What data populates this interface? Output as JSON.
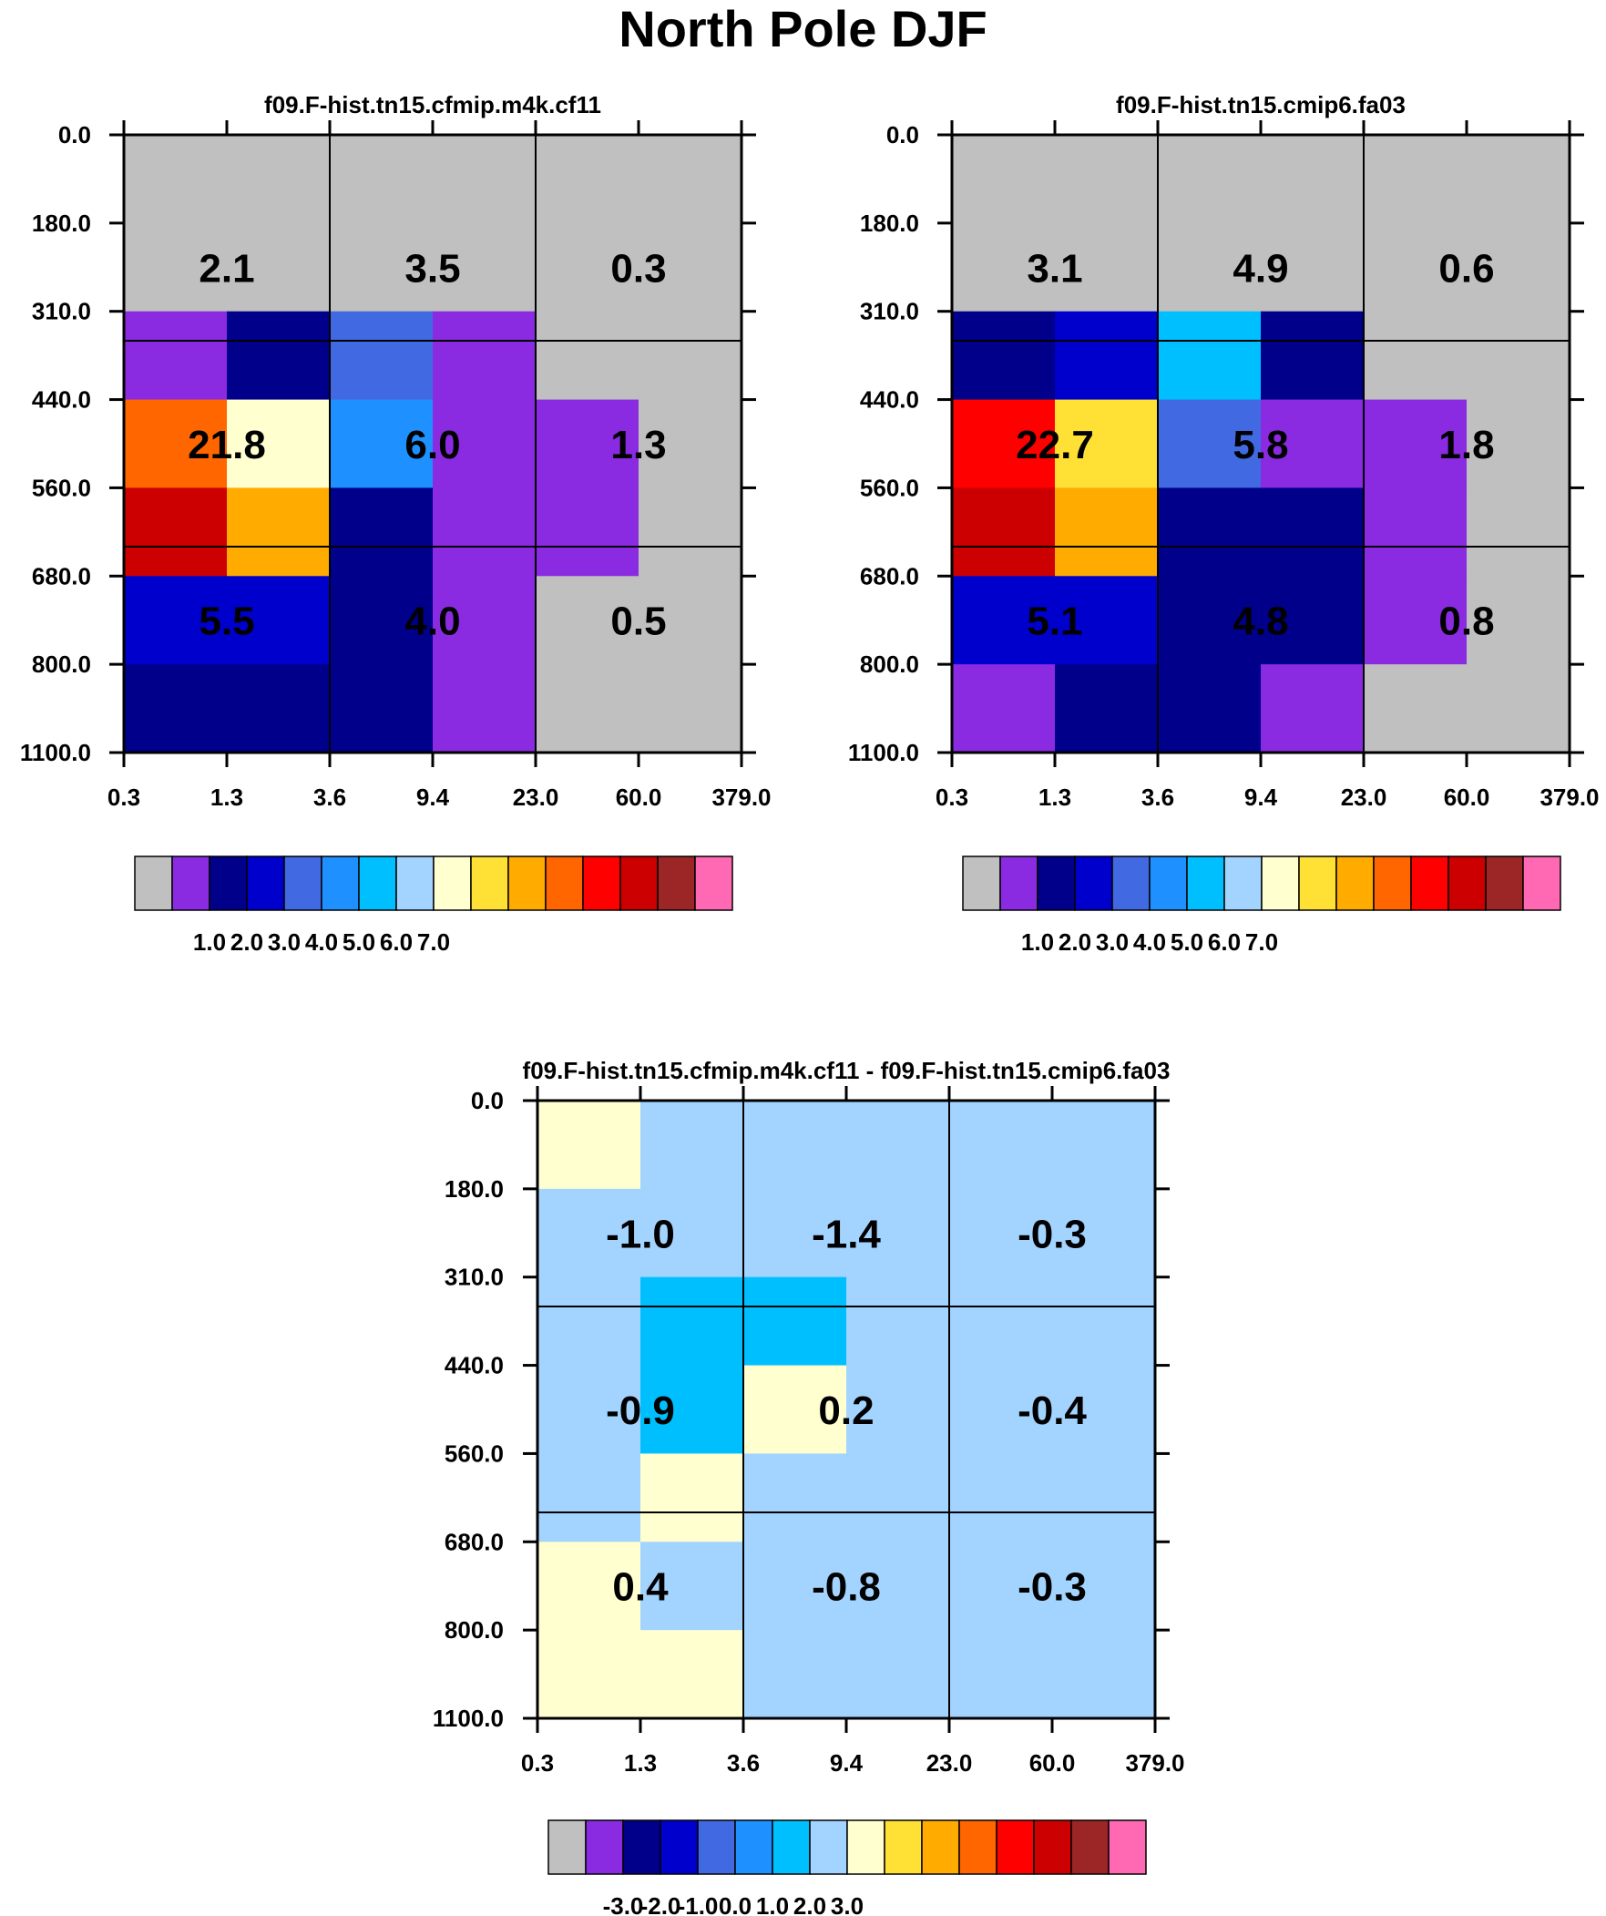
{
  "title": "North Pole DJF",
  "palette": [
    "#c0c0c0",
    "#8a2be2",
    "#00008b",
    "#0000cd",
    "#4169e1",
    "#1e90ff",
    "#00bfff",
    "#a3d3ff",
    "#ffffd0",
    "#ffe135",
    "#ffab00",
    "#ff6600",
    "#ff0000",
    "#cc0000",
    "#9c2525",
    "#ff69b4"
  ],
  "chart_data": [
    {
      "type": "heatmap",
      "title": "f09.F-hist.tn15.cfmip.m4k.cf11",
      "x_ticks": [
        "0.3",
        "1.3",
        "3.6",
        "9.4",
        "23.0",
        "60.0",
        "379.0"
      ],
      "y_ticks": [
        "0.0",
        "180.0",
        "310.0",
        "440.0",
        "560.0",
        "680.0",
        "800.0",
        "1100.0"
      ],
      "cell_colors": [
        [
          0,
          0,
          0,
          0,
          0,
          0
        ],
        [
          0,
          0,
          0,
          0,
          0,
          0
        ],
        [
          1,
          2,
          4,
          1,
          0,
          0
        ],
        [
          11,
          8,
          5,
          1,
          1,
          0
        ],
        [
          13,
          10,
          2,
          1,
          1,
          0
        ],
        [
          3,
          3,
          2,
          1,
          0,
          0
        ],
        [
          2,
          2,
          2,
          1,
          0,
          0
        ]
      ],
      "block_values": [
        [
          "2.1",
          "3.5",
          "0.3"
        ],
        [
          "21.8",
          "6.0",
          "1.3"
        ],
        [
          "5.5",
          "4.0",
          "0.5"
        ]
      ],
      "colorbar_labels": [
        "1.0",
        "2.0",
        "3.0",
        "4.0",
        "5.0",
        "6.0",
        "7.0"
      ]
    },
    {
      "type": "heatmap",
      "title": "f09.F-hist.tn15.cmip6.fa03",
      "x_ticks": [
        "0.3",
        "1.3",
        "3.6",
        "9.4",
        "23.0",
        "60.0",
        "379.0"
      ],
      "y_ticks": [
        "0.0",
        "180.0",
        "310.0",
        "440.0",
        "560.0",
        "680.0",
        "800.0",
        "1100.0"
      ],
      "cell_colors": [
        [
          0,
          0,
          0,
          0,
          0,
          0
        ],
        [
          0,
          0,
          0,
          0,
          0,
          0
        ],
        [
          2,
          3,
          6,
          2,
          0,
          0
        ],
        [
          12,
          9,
          4,
          1,
          1,
          0
        ],
        [
          13,
          10,
          2,
          2,
          1,
          0
        ],
        [
          3,
          3,
          2,
          2,
          1,
          0
        ],
        [
          1,
          2,
          2,
          1,
          0,
          0
        ]
      ],
      "block_values": [
        [
          "3.1",
          "4.9",
          "0.6"
        ],
        [
          "22.7",
          "5.8",
          "1.8"
        ],
        [
          "5.1",
          "4.8",
          "0.8"
        ]
      ],
      "colorbar_labels": [
        "1.0",
        "2.0",
        "3.0",
        "4.0",
        "5.0",
        "6.0",
        "7.0"
      ]
    },
    {
      "type": "heatmap",
      "title": "f09.F-hist.tn15.cfmip.m4k.cf11 - f09.F-hist.tn15.cmip6.fa03",
      "x_ticks": [
        "0.3",
        "1.3",
        "3.6",
        "9.4",
        "23.0",
        "60.0",
        "379.0"
      ],
      "y_ticks": [
        "0.0",
        "180.0",
        "310.0",
        "440.0",
        "560.0",
        "680.0",
        "800.0",
        "1100.0"
      ],
      "cell_colors": [
        [
          8,
          7,
          7,
          7,
          7,
          7
        ],
        [
          7,
          7,
          7,
          7,
          7,
          7
        ],
        [
          7,
          6,
          6,
          7,
          7,
          7
        ],
        [
          7,
          6,
          8,
          7,
          7,
          7
        ],
        [
          7,
          8,
          7,
          7,
          7,
          7
        ],
        [
          8,
          7,
          7,
          7,
          7,
          7
        ],
        [
          8,
          8,
          7,
          7,
          7,
          7
        ]
      ],
      "block_values": [
        [
          "-1.0",
          "-1.4",
          "-0.3"
        ],
        [
          "-0.9",
          "0.2",
          "-0.4"
        ],
        [
          "0.4",
          "-0.8",
          "-0.3"
        ]
      ],
      "colorbar_labels": [
        "-3.0",
        "-2.0",
        "-1.0",
        "0.0",
        "1.0",
        "2.0",
        "3.0"
      ]
    }
  ]
}
